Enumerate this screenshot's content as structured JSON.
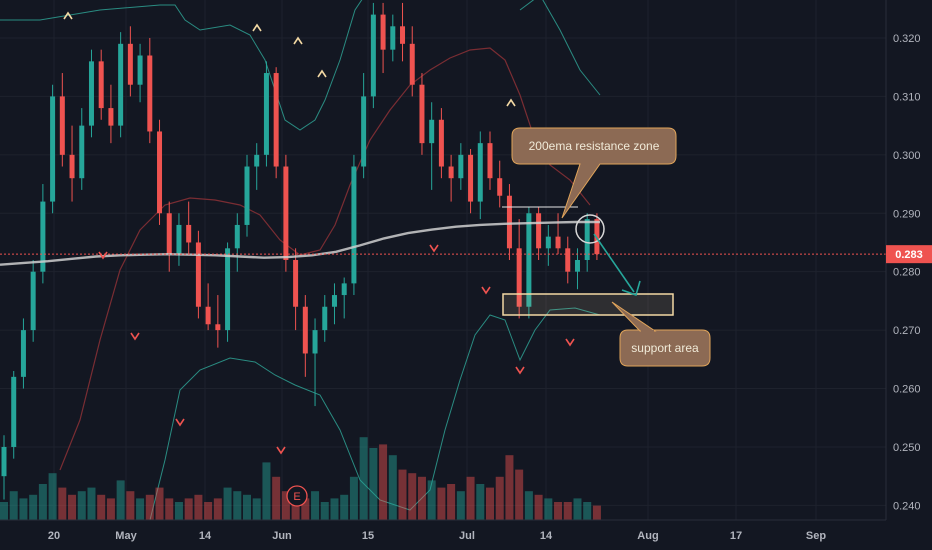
{
  "chart_data": {
    "type": "candlestick",
    "y_axis": {
      "ticks": [
        "0.320",
        "0.310",
        "0.300",
        "0.290",
        "0.280",
        "0.270",
        "0.260",
        "0.250",
        "0.240"
      ],
      "ylim": [
        0.2375,
        0.3265
      ],
      "last_price_label": "0.283",
      "last_price": 0.283
    },
    "x_axis": {
      "ticks": [
        "20",
        "May",
        "14",
        "Jun",
        "15",
        "Jul",
        "14",
        "Aug",
        "17",
        "Sep"
      ]
    },
    "ema200": [
      0.2812,
      0.2815,
      0.2818,
      0.2822,
      0.2826,
      0.2828,
      0.2829,
      0.283,
      0.2829,
      0.2828,
      0.2826,
      0.2824,
      0.2825,
      0.2828,
      0.2834,
      0.2845,
      0.2857,
      0.2866,
      0.2872,
      0.2877,
      0.288,
      0.2882,
      0.2883,
      0.2884,
      0.2885,
      0.2885
    ],
    "candles": [
      {
        "o": 0.245,
        "h": 0.252,
        "l": 0.241,
        "c": 0.25
      },
      {
        "o": 0.25,
        "h": 0.263,
        "l": 0.248,
        "c": 0.262
      },
      {
        "o": 0.262,
        "h": 0.272,
        "l": 0.26,
        "c": 0.27
      },
      {
        "o": 0.27,
        "h": 0.282,
        "l": 0.268,
        "c": 0.28
      },
      {
        "o": 0.28,
        "h": 0.295,
        "l": 0.278,
        "c": 0.292
      },
      {
        "o": 0.292,
        "h": 0.312,
        "l": 0.29,
        "c": 0.31
      },
      {
        "o": 0.31,
        "h": 0.314,
        "l": 0.298,
        "c": 0.3
      },
      {
        "o": 0.3,
        "h": 0.305,
        "l": 0.292,
        "c": 0.296
      },
      {
        "o": 0.296,
        "h": 0.308,
        "l": 0.294,
        "c": 0.305
      },
      {
        "o": 0.305,
        "h": 0.318,
        "l": 0.303,
        "c": 0.316
      },
      {
        "o": 0.316,
        "h": 0.318,
        "l": 0.306,
        "c": 0.308
      },
      {
        "o": 0.308,
        "h": 0.312,
        "l": 0.302,
        "c": 0.305
      },
      {
        "o": 0.305,
        "h": 0.321,
        "l": 0.303,
        "c": 0.319
      },
      {
        "o": 0.319,
        "h": 0.322,
        "l": 0.31,
        "c": 0.312
      },
      {
        "o": 0.312,
        "h": 0.319,
        "l": 0.309,
        "c": 0.317
      },
      {
        "o": 0.317,
        "h": 0.32,
        "l": 0.302,
        "c": 0.304
      },
      {
        "o": 0.304,
        "h": 0.306,
        "l": 0.288,
        "c": 0.29
      },
      {
        "o": 0.29,
        "h": 0.292,
        "l": 0.28,
        "c": 0.283
      },
      {
        "o": 0.283,
        "h": 0.29,
        "l": 0.281,
        "c": 0.288
      },
      {
        "o": 0.288,
        "h": 0.292,
        "l": 0.283,
        "c": 0.285
      },
      {
        "o": 0.285,
        "h": 0.287,
        "l": 0.272,
        "c": 0.274
      },
      {
        "o": 0.274,
        "h": 0.278,
        "l": 0.27,
        "c": 0.271
      },
      {
        "o": 0.271,
        "h": 0.276,
        "l": 0.267,
        "c": 0.27
      },
      {
        "o": 0.27,
        "h": 0.285,
        "l": 0.268,
        "c": 0.284
      },
      {
        "o": 0.284,
        "h": 0.29,
        "l": 0.28,
        "c": 0.288
      },
      {
        "o": 0.288,
        "h": 0.3,
        "l": 0.286,
        "c": 0.298
      },
      {
        "o": 0.298,
        "h": 0.302,
        "l": 0.294,
        "c": 0.3
      },
      {
        "o": 0.3,
        "h": 0.316,
        "l": 0.298,
        "c": 0.314
      },
      {
        "o": 0.314,
        "h": 0.315,
        "l": 0.296,
        "c": 0.298
      },
      {
        "o": 0.298,
        "h": 0.3,
        "l": 0.28,
        "c": 0.282
      },
      {
        "o": 0.282,
        "h": 0.284,
        "l": 0.27,
        "c": 0.274
      },
      {
        "o": 0.274,
        "h": 0.276,
        "l": 0.262,
        "c": 0.266
      },
      {
        "o": 0.266,
        "h": 0.272,
        "l": 0.257,
        "c": 0.27
      },
      {
        "o": 0.27,
        "h": 0.276,
        "l": 0.268,
        "c": 0.274
      },
      {
        "o": 0.274,
        "h": 0.278,
        "l": 0.271,
        "c": 0.276
      },
      {
        "o": 0.276,
        "h": 0.279,
        "l": 0.272,
        "c": 0.278
      },
      {
        "o": 0.278,
        "h": 0.3,
        "l": 0.276,
        "c": 0.298
      },
      {
        "o": 0.298,
        "h": 0.314,
        "l": 0.296,
        "c": 0.31
      },
      {
        "o": 0.31,
        "h": 0.326,
        "l": 0.308,
        "c": 0.324
      },
      {
        "o": 0.324,
        "h": 0.326,
        "l": 0.314,
        "c": 0.318
      },
      {
        "o": 0.318,
        "h": 0.324,
        "l": 0.316,
        "c": 0.322
      },
      {
        "o": 0.322,
        "h": 0.326,
        "l": 0.316,
        "c": 0.319
      },
      {
        "o": 0.319,
        "h": 0.322,
        "l": 0.31,
        "c": 0.312
      },
      {
        "o": 0.312,
        "h": 0.314,
        "l": 0.3,
        "c": 0.302
      },
      {
        "o": 0.302,
        "h": 0.309,
        "l": 0.294,
        "c": 0.306
      },
      {
        "o": 0.306,
        "h": 0.308,
        "l": 0.296,
        "c": 0.298
      },
      {
        "o": 0.298,
        "h": 0.3,
        "l": 0.292,
        "c": 0.296
      },
      {
        "o": 0.296,
        "h": 0.302,
        "l": 0.294,
        "c": 0.3
      },
      {
        "o": 0.3,
        "h": 0.301,
        "l": 0.29,
        "c": 0.292
      },
      {
        "o": 0.292,
        "h": 0.304,
        "l": 0.289,
        "c": 0.302
      },
      {
        "o": 0.302,
        "h": 0.304,
        "l": 0.294,
        "c": 0.296
      },
      {
        "o": 0.296,
        "h": 0.299,
        "l": 0.291,
        "c": 0.293
      },
      {
        "o": 0.293,
        "h": 0.295,
        "l": 0.282,
        "c": 0.284
      },
      {
        "o": 0.284,
        "h": 0.289,
        "l": 0.272,
        "c": 0.274
      },
      {
        "o": 0.274,
        "h": 0.291,
        "l": 0.272,
        "c": 0.29
      },
      {
        "o": 0.29,
        "h": 0.291,
        "l": 0.282,
        "c": 0.284
      },
      {
        "o": 0.284,
        "h": 0.288,
        "l": 0.281,
        "c": 0.286
      },
      {
        "o": 0.286,
        "h": 0.29,
        "l": 0.283,
        "c": 0.284
      },
      {
        "o": 0.284,
        "h": 0.286,
        "l": 0.278,
        "c": 0.28
      },
      {
        "o": 0.28,
        "h": 0.284,
        "l": 0.277,
        "c": 0.282
      },
      {
        "o": 0.282,
        "h": 0.29,
        "l": 0.28,
        "c": 0.289
      },
      {
        "o": 0.289,
        "h": 0.29,
        "l": 0.282,
        "c": 0.283
      }
    ],
    "volume": [
      0.05,
      0.08,
      0.06,
      0.07,
      0.1,
      0.13,
      0.09,
      0.07,
      0.08,
      0.09,
      0.07,
      0.06,
      0.11,
      0.08,
      0.06,
      0.07,
      0.09,
      0.06,
      0.05,
      0.06,
      0.07,
      0.05,
      0.06,
      0.09,
      0.08,
      0.07,
      0.06,
      0.16,
      0.12,
      0.08,
      0.07,
      0.06,
      0.08,
      0.05,
      0.06,
      0.07,
      0.12,
      0.23,
      0.2,
      0.21,
      0.18,
      0.14,
      0.13,
      0.12,
      0.11,
      0.09,
      0.1,
      0.08,
      0.12,
      0.1,
      0.09,
      0.12,
      0.18,
      0.14,
      0.08,
      0.07,
      0.06,
      0.05,
      0.05,
      0.06,
      0.05,
      0.04
    ]
  },
  "annotations": {
    "resistance_label": "200ema resistance zone",
    "support_label": "support area",
    "earnings_marker": "E"
  },
  "colors": {
    "up": "#26a69a",
    "down": "#ef5350",
    "ema": "#cfcfcf",
    "support_box": "#f3d9a4",
    "callout_fill": "#8c6a54",
    "callout_border": "#e0a45a",
    "arrow": "#26a69a",
    "price_tag": "#ef5350"
  }
}
